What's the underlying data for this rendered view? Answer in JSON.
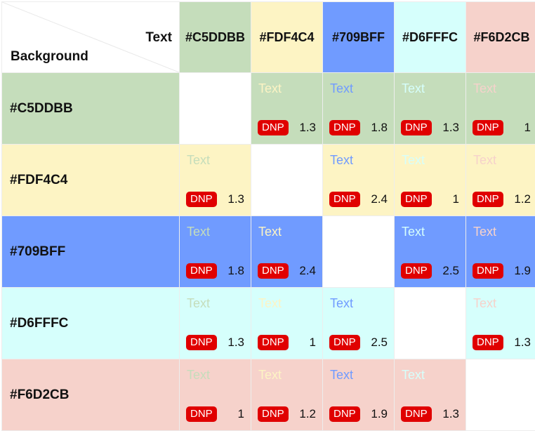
{
  "corner": {
    "text_label": "Text",
    "background_label": "Background"
  },
  "sample_text": "Text",
  "badge_label": "DNP",
  "colors": [
    {
      "name": "#C5DDBB",
      "hex": "#C5DDBB"
    },
    {
      "name": "#FDF4C4",
      "hex": "#FDF4C4"
    },
    {
      "name": "#709BFF",
      "hex": "#709BFF"
    },
    {
      "name": "#D6FFFC",
      "hex": "#D6FFFC"
    },
    {
      "name": "#F6D2CB",
      "hex": "#F6D2CB"
    }
  ],
  "ratios": [
    [
      null,
      "1.3",
      "1.8",
      "1.3",
      "1"
    ],
    [
      "1.3",
      null,
      "2.4",
      "1",
      "1.2"
    ],
    [
      "1.8",
      "2.4",
      null,
      "2.5",
      "1.9"
    ],
    [
      "1.3",
      "1",
      "2.5",
      null,
      "1.3"
    ],
    [
      "1",
      "1.2",
      "1.9",
      "1.3",
      null
    ]
  ]
}
